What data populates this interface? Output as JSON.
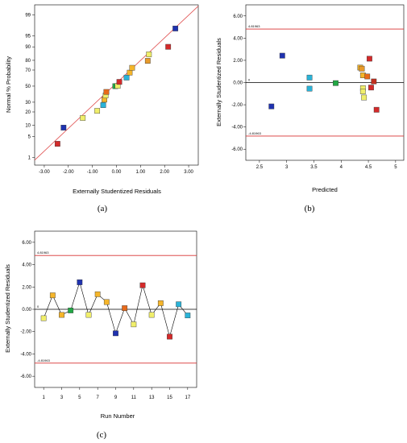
{
  "chart_data": [
    {
      "type": "scatter",
      "caption": "(a)",
      "xlabel": "Externally Studentized Residuals",
      "ylabel": "Normal % Probability",
      "xlim": [
        -3.4,
        3.4
      ],
      "x_ticks": [
        "-3.00",
        "-2.00",
        "-1.00",
        "0.00",
        "1.00",
        "2.00",
        "3.00"
      ],
      "x_tick_values": [
        -3,
        -2,
        -1,
        0,
        1,
        2,
        3
      ],
      "y_ticks": [
        "1",
        "5",
        "10",
        "20",
        "30",
        "50",
        "70",
        "80",
        "90",
        "95",
        "99"
      ],
      "y_tick_values": [
        1,
        5,
        10,
        20,
        30,
        50,
        70,
        80,
        90,
        95,
        99
      ],
      "ylim": [
        0.5,
        99.6
      ],
      "fit_line": [
        [
          -3.4,
          0.79
        ],
        [
          3.4,
          99.55
        ]
      ],
      "points": [
        {
          "x": -2.45,
          "y": 3.0,
          "color": "#d42a2a"
        },
        {
          "x": -2.2,
          "y": 8.8,
          "color": "#1f32b0"
        },
        {
          "x": -1.4,
          "y": 15.0,
          "color": "#f0ee6a"
        },
        {
          "x": -0.8,
          "y": 21.0,
          "color": "#f0ee6a"
        },
        {
          "x": -0.55,
          "y": 26.8,
          "color": "#2ab3d8"
        },
        {
          "x": -0.5,
          "y": 33.0,
          "color": "#f5b52a"
        },
        {
          "x": -0.45,
          "y": 38.0,
          "color": "#f0ee6a"
        },
        {
          "x": -0.42,
          "y": 42.5,
          "color": "#e86a1a"
        },
        {
          "x": -0.05,
          "y": 50.0,
          "color": "#22a845"
        },
        {
          "x": 0.05,
          "y": 50.3,
          "color": "#f0ee6a"
        },
        {
          "x": 0.12,
          "y": 55.5,
          "color": "#d42a2a"
        },
        {
          "x": 0.42,
          "y": 61.0,
          "color": "#2ab3d8"
        },
        {
          "x": 0.55,
          "y": 67.0,
          "color": "#f5b52a"
        },
        {
          "x": 0.65,
          "y": 72.5,
          "color": "#f5b52a"
        },
        {
          "x": 1.3,
          "y": 79.5,
          "color": "#e89a2a"
        },
        {
          "x": 1.35,
          "y": 85.0,
          "color": "#f0ee6a"
        },
        {
          "x": 2.15,
          "y": 90.0,
          "color": "#d42a2a"
        },
        {
          "x": 2.45,
          "y": 97.0,
          "color": "#1f32b0"
        }
      ]
    },
    {
      "type": "scatter",
      "caption": "(b)",
      "xlabel": "Predicted",
      "ylabel": "Externally Studentized Residuals",
      "xlim": [
        2.25,
        5.15
      ],
      "ylim": [
        -7,
        7
      ],
      "x_ticks": [
        "2.5",
        "3",
        "3.5",
        "4",
        "4.5",
        "5"
      ],
      "x_tick_values": [
        2.5,
        3,
        3.5,
        4,
        4.5,
        5
      ],
      "y_ticks": [
        "-6.00",
        "-4.00",
        "-2.00",
        "0.00",
        "2.00",
        "4.00",
        "6.00"
      ],
      "y_tick_values": [
        -6,
        -4,
        -2,
        0,
        2,
        4,
        6
      ],
      "upper_limit": 4.81963,
      "lower_limit": -4.81963,
      "upper_limit_label": "4.81963",
      "lower_limit_label": "-4.81963",
      "zero_label": "0",
      "points": [
        {
          "x": 2.72,
          "y": -2.15,
          "color": "#1f32b0"
        },
        {
          "x": 2.92,
          "y": 2.42,
          "color": "#1f32b0"
        },
        {
          "x": 3.42,
          "y": 0.45,
          "color": "#2ab3d8"
        },
        {
          "x": 3.42,
          "y": -0.55,
          "color": "#2ab3d8"
        },
        {
          "x": 3.9,
          "y": -0.05,
          "color": "#22a845"
        },
        {
          "x": 4.35,
          "y": 1.35,
          "color": "#f5b52a"
        },
        {
          "x": 4.38,
          "y": 1.25,
          "color": "#e89a2a"
        },
        {
          "x": 4.4,
          "y": 0.65,
          "color": "#f5b52a"
        },
        {
          "x": 4.4,
          "y": -0.5,
          "color": "#f0ee6a"
        },
        {
          "x": 4.4,
          "y": -0.8,
          "color": "#f0ee6a"
        },
        {
          "x": 4.42,
          "y": -1.35,
          "color": "#f0ee6a"
        },
        {
          "x": 4.48,
          "y": 0.55,
          "color": "#e86a1a"
        },
        {
          "x": 4.52,
          "y": 2.15,
          "color": "#d42a2a"
        },
        {
          "x": 4.55,
          "y": -0.45,
          "color": "#d42a2a"
        },
        {
          "x": 4.6,
          "y": 0.1,
          "color": "#c03020"
        },
        {
          "x": 4.65,
          "y": -2.45,
          "color": "#d42a2a"
        }
      ]
    },
    {
      "type": "line",
      "caption": "(c)",
      "xlabel": "Run Number",
      "ylabel": "Externally Studentized Residuals",
      "xlim": [
        0,
        18
      ],
      "ylim": [
        -7,
        7
      ],
      "x_ticks": [
        "1",
        "3",
        "5",
        "7",
        "9",
        "11",
        "13",
        "15",
        "17"
      ],
      "x_tick_values": [
        1,
        3,
        5,
        7,
        9,
        11,
        13,
        15,
        17
      ],
      "y_ticks": [
        "-6.00",
        "-4.00",
        "-2.00",
        "0.00",
        "2.00",
        "4.00",
        "6.00"
      ],
      "y_tick_values": [
        -6,
        -4,
        -2,
        0,
        2,
        4,
        6
      ],
      "upper_limit": 4.81963,
      "lower_limit": -4.81963,
      "upper_limit_label": "4.81963",
      "lower_limit_label": "-4.81963",
      "zero_label": "0",
      "x": [
        1,
        2,
        3,
        4,
        5,
        6,
        7,
        8,
        9,
        10,
        11,
        12,
        13,
        14,
        15,
        16,
        17
      ],
      "y": [
        -0.8,
        1.25,
        -0.5,
        -0.1,
        2.42,
        -0.5,
        1.35,
        0.65,
        -2.15,
        0.1,
        -1.35,
        2.15,
        -0.5,
        0.55,
        -2.45,
        0.45,
        -0.55
      ],
      "colors": [
        "#f0ee6a",
        "#f5b52a",
        "#f5b52a",
        "#22a845",
        "#1f32b0",
        "#f0ee6a",
        "#f5b52a",
        "#f5b52a",
        "#1f32b0",
        "#e86a1a",
        "#f0ee6a",
        "#d42a2a",
        "#f0ee6a",
        "#f5b52a",
        "#d42a2a",
        "#2ab3d8",
        "#2ab3d8"
      ]
    }
  ]
}
